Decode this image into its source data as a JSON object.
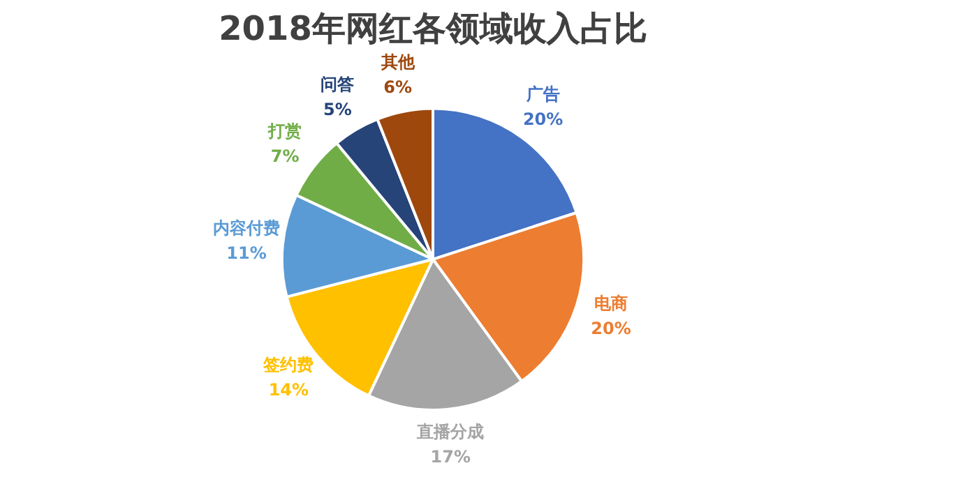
{
  "chart_data": {
    "type": "pie",
    "title": "2018年网红各领域收入占比",
    "categories": [
      "广告",
      "电商",
      "直播分成",
      "签约费",
      "内容付费",
      "打赏",
      "问答",
      "其他"
    ],
    "values": [
      20,
      20,
      17,
      14,
      11,
      7,
      5,
      6
    ],
    "value_labels": [
      "20%",
      "20%",
      "17%",
      "14%",
      "11%",
      "7%",
      "5%",
      "6%"
    ],
    "colors": [
      "#4472c4",
      "#ed7d31",
      "#a5a5a5",
      "#ffc000",
      "#5b9bd5",
      "#70ad47",
      "#264478",
      "#9e480e"
    ],
    "legend": false
  }
}
